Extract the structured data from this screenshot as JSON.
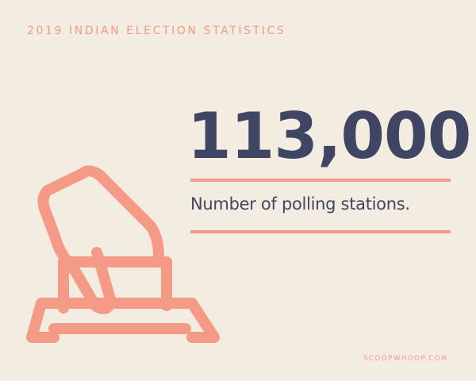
{
  "header": {
    "title": "2019 INDIAN ELECTION STATISTICS"
  },
  "stat": {
    "number": "113,000",
    "caption": "Number of polling stations."
  },
  "footer": {
    "credit": "SCOOPWHOOP.COM"
  },
  "illustration": {
    "icon": "ballot-box-hand-icon",
    "color": "#f49a87"
  },
  "colors": {
    "background": "#f3ece0",
    "accent": "#f49a87",
    "text": "#404564"
  }
}
